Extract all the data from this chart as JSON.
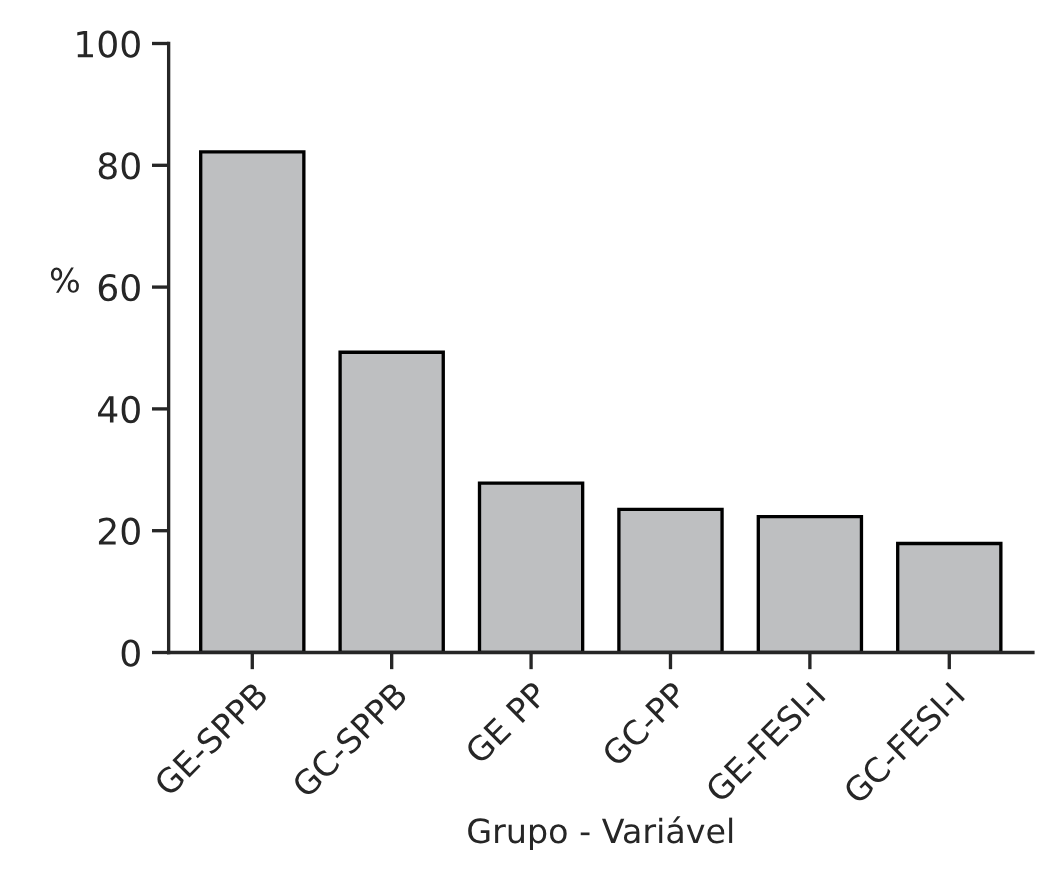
{
  "chart_data": {
    "type": "bar",
    "xlabel": "Grupo - Variável",
    "ylabel": "%",
    "categories": [
      "GE-SPPB",
      "GC-SPPB",
      "GE PP",
      "GC-PP",
      "GE-FESI-I",
      "GC-FESI-I"
    ],
    "values": [
      82.2,
      49.3,
      27.8,
      23.5,
      22.3,
      17.9
    ],
    "color": "#bebfc1",
    "ylim": [
      0,
      100
    ],
    "yticks": [
      0,
      20,
      40,
      60,
      80,
      100
    ],
    "grid": false
  }
}
